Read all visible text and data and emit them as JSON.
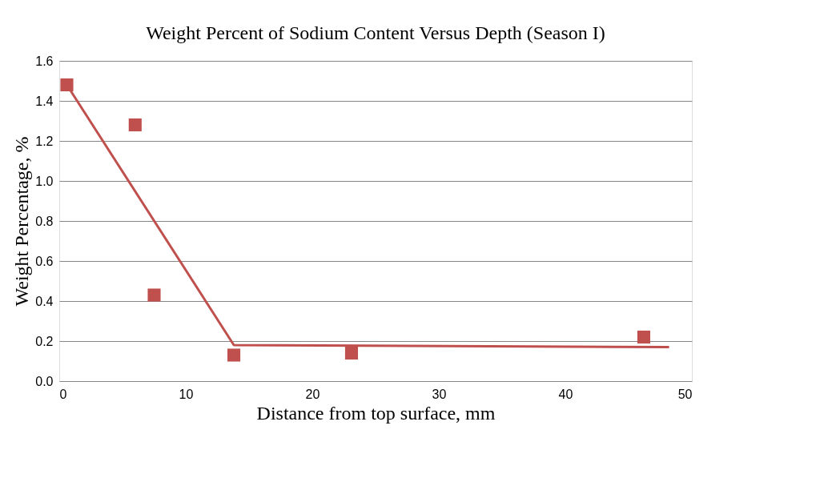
{
  "chart_data": {
    "type": "scatter",
    "title": "Weight Percent of Sodium Content Versus Depth (Season I)",
    "xlabel": "Distance from top surface, mm",
    "ylabel": "Weight Percentage, %",
    "xlim": [
      0,
      50
    ],
    "xticks": [
      0,
      10,
      20,
      30,
      40,
      50
    ],
    "ylim": [
      0,
      1.6
    ],
    "yticks": [
      {
        "value": 0,
        "label": "0.0"
      },
      {
        "value": 0.2,
        "label": "0.2"
      },
      {
        "value": 0.4,
        "label": "0.4"
      },
      {
        "value": 0.6,
        "label": "0.6"
      },
      {
        "value": 0.8,
        "label": "0.8"
      },
      {
        "value": 1.0,
        "label": "1.0"
      },
      {
        "value": 1.2,
        "label": "1.2"
      },
      {
        "value": 1.4,
        "label": "1.4"
      },
      {
        "value": 1.6,
        "label": "1.6"
      }
    ],
    "grid": "y",
    "marker": "square",
    "series": [
      {
        "color": "#c0504d",
        "x": [
          0.6,
          6.0,
          7.5,
          13.8,
          23.1,
          46.2
        ],
        "values": [
          1.48,
          1.28,
          0.43,
          0.13,
          0.14,
          0.22
        ]
      },
      {
        "type": "line",
        "color": "#c0504d",
        "marker": "none",
        "line_style": "solid",
        "x": [
          0.6,
          13.8,
          48.2
        ],
        "values": [
          1.48,
          0.18,
          0.17
        ]
      }
    ]
  }
}
